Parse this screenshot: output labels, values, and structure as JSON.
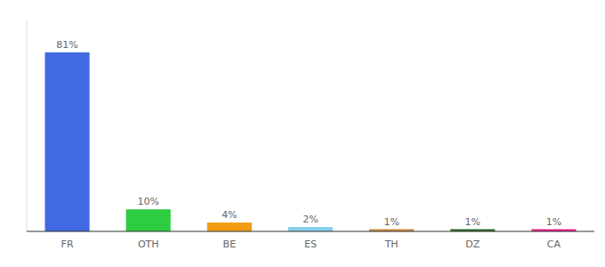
{
  "chart_data": {
    "type": "bar",
    "categories": [
      "FR",
      "OTH",
      "BE",
      "ES",
      "TH",
      "DZ",
      "CA"
    ],
    "values": [
      81,
      10,
      4,
      2,
      1,
      1,
      1
    ],
    "value_labels": [
      "81%",
      "10%",
      "4%",
      "2%",
      "1%",
      "1%",
      "1%"
    ],
    "colors": [
      "#4169e1",
      "#2ecc40",
      "#f39c12",
      "#87ceeb",
      "#cd853f",
      "#2d6a2d",
      "#e91e8c"
    ],
    "ylim": [
      0,
      95
    ],
    "data_labels": true,
    "tick_labels": "x"
  }
}
